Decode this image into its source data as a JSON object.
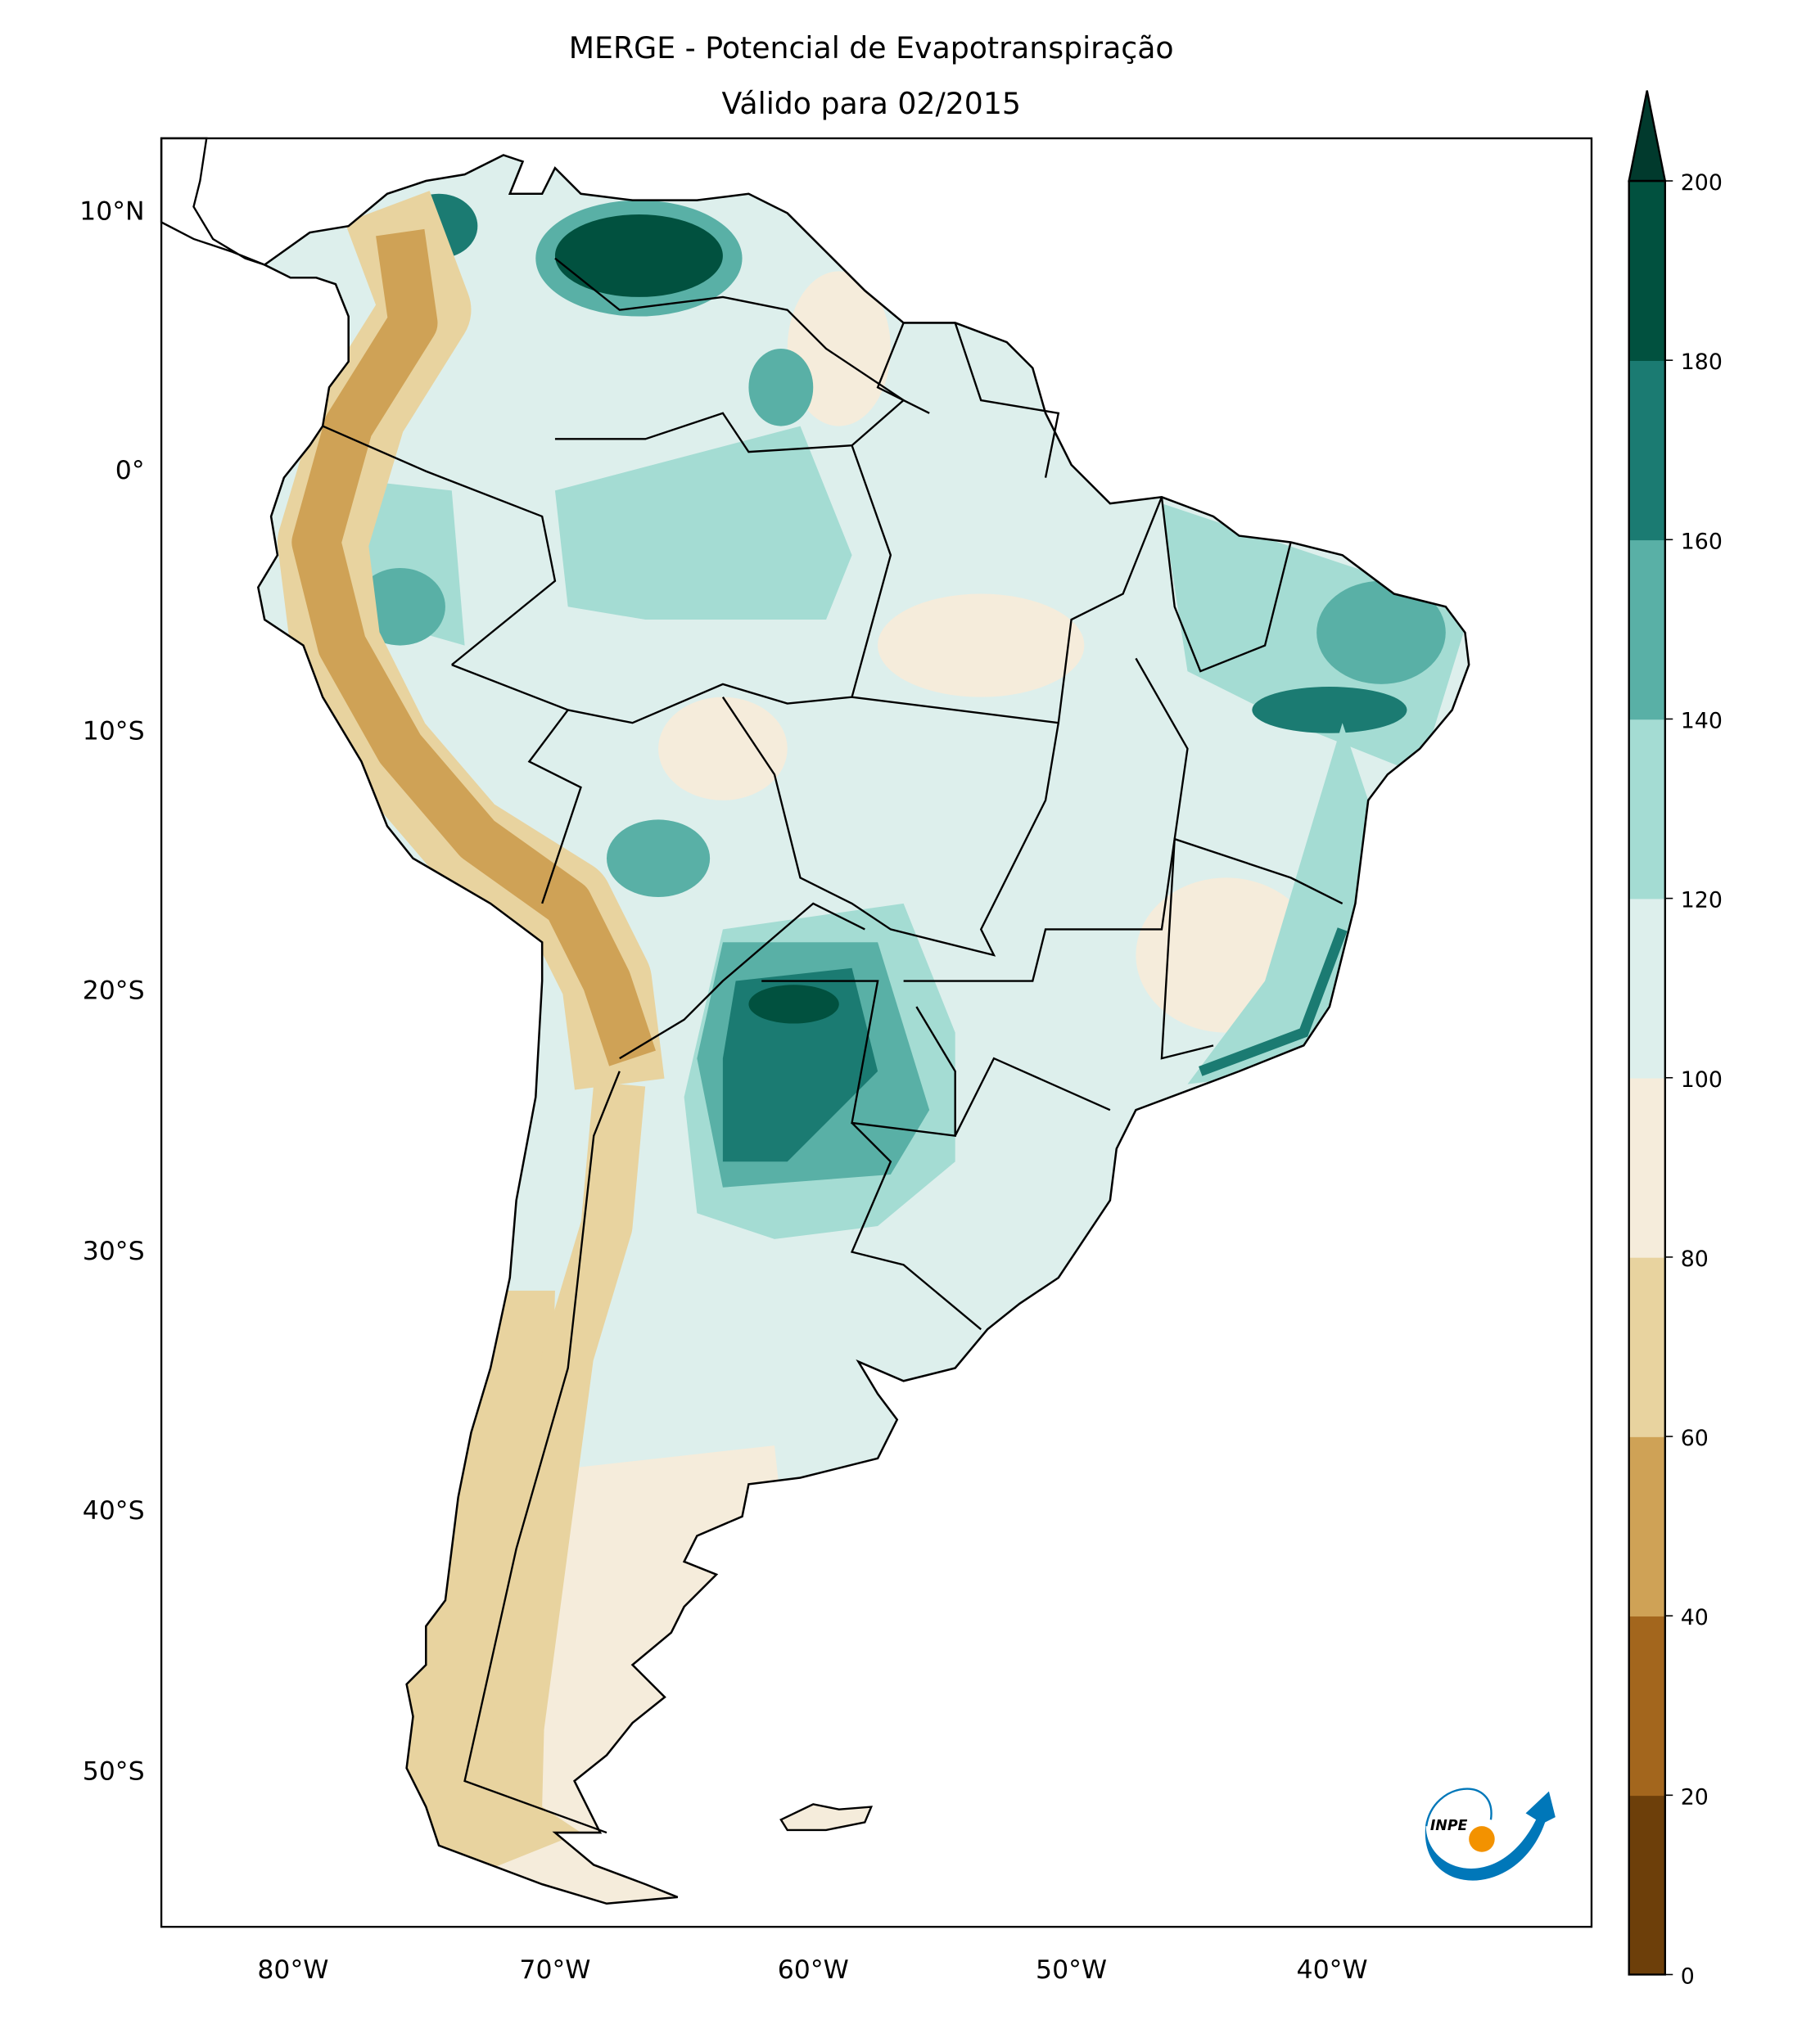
{
  "title": {
    "line1": "MERGE - Potencial de Evapotranspiração",
    "line2": "Válido para 02/2015"
  },
  "axes": {
    "lat_ticks": [
      "10°N",
      "0°",
      "10°S",
      "20°S",
      "30°S",
      "40°S",
      "50°S"
    ],
    "lon_ticks": [
      "80°W",
      "70°W",
      "60°W",
      "50°W",
      "40°W"
    ]
  },
  "colorbar": {
    "levels": [
      0,
      20,
      40,
      60,
      80,
      100,
      120,
      140,
      160,
      180,
      200
    ],
    "tick_labels": [
      "0",
      "20",
      "40",
      "60",
      "80",
      "100",
      "120",
      "140",
      "160",
      "180",
      "200"
    ],
    "colors": [
      "#6d3f0a",
      "#a3661d",
      "#cfa256",
      "#e8d39f",
      "#f5ecdb",
      "#ddefec",
      "#a4dcd3",
      "#59b0a6",
      "#1b7b72",
      "#01513f"
    ],
    "extend_max_color": "#013a2d"
  },
  "logo": {
    "text": "INPE",
    "blue": "#0077b9",
    "orange": "#f39200"
  }
}
